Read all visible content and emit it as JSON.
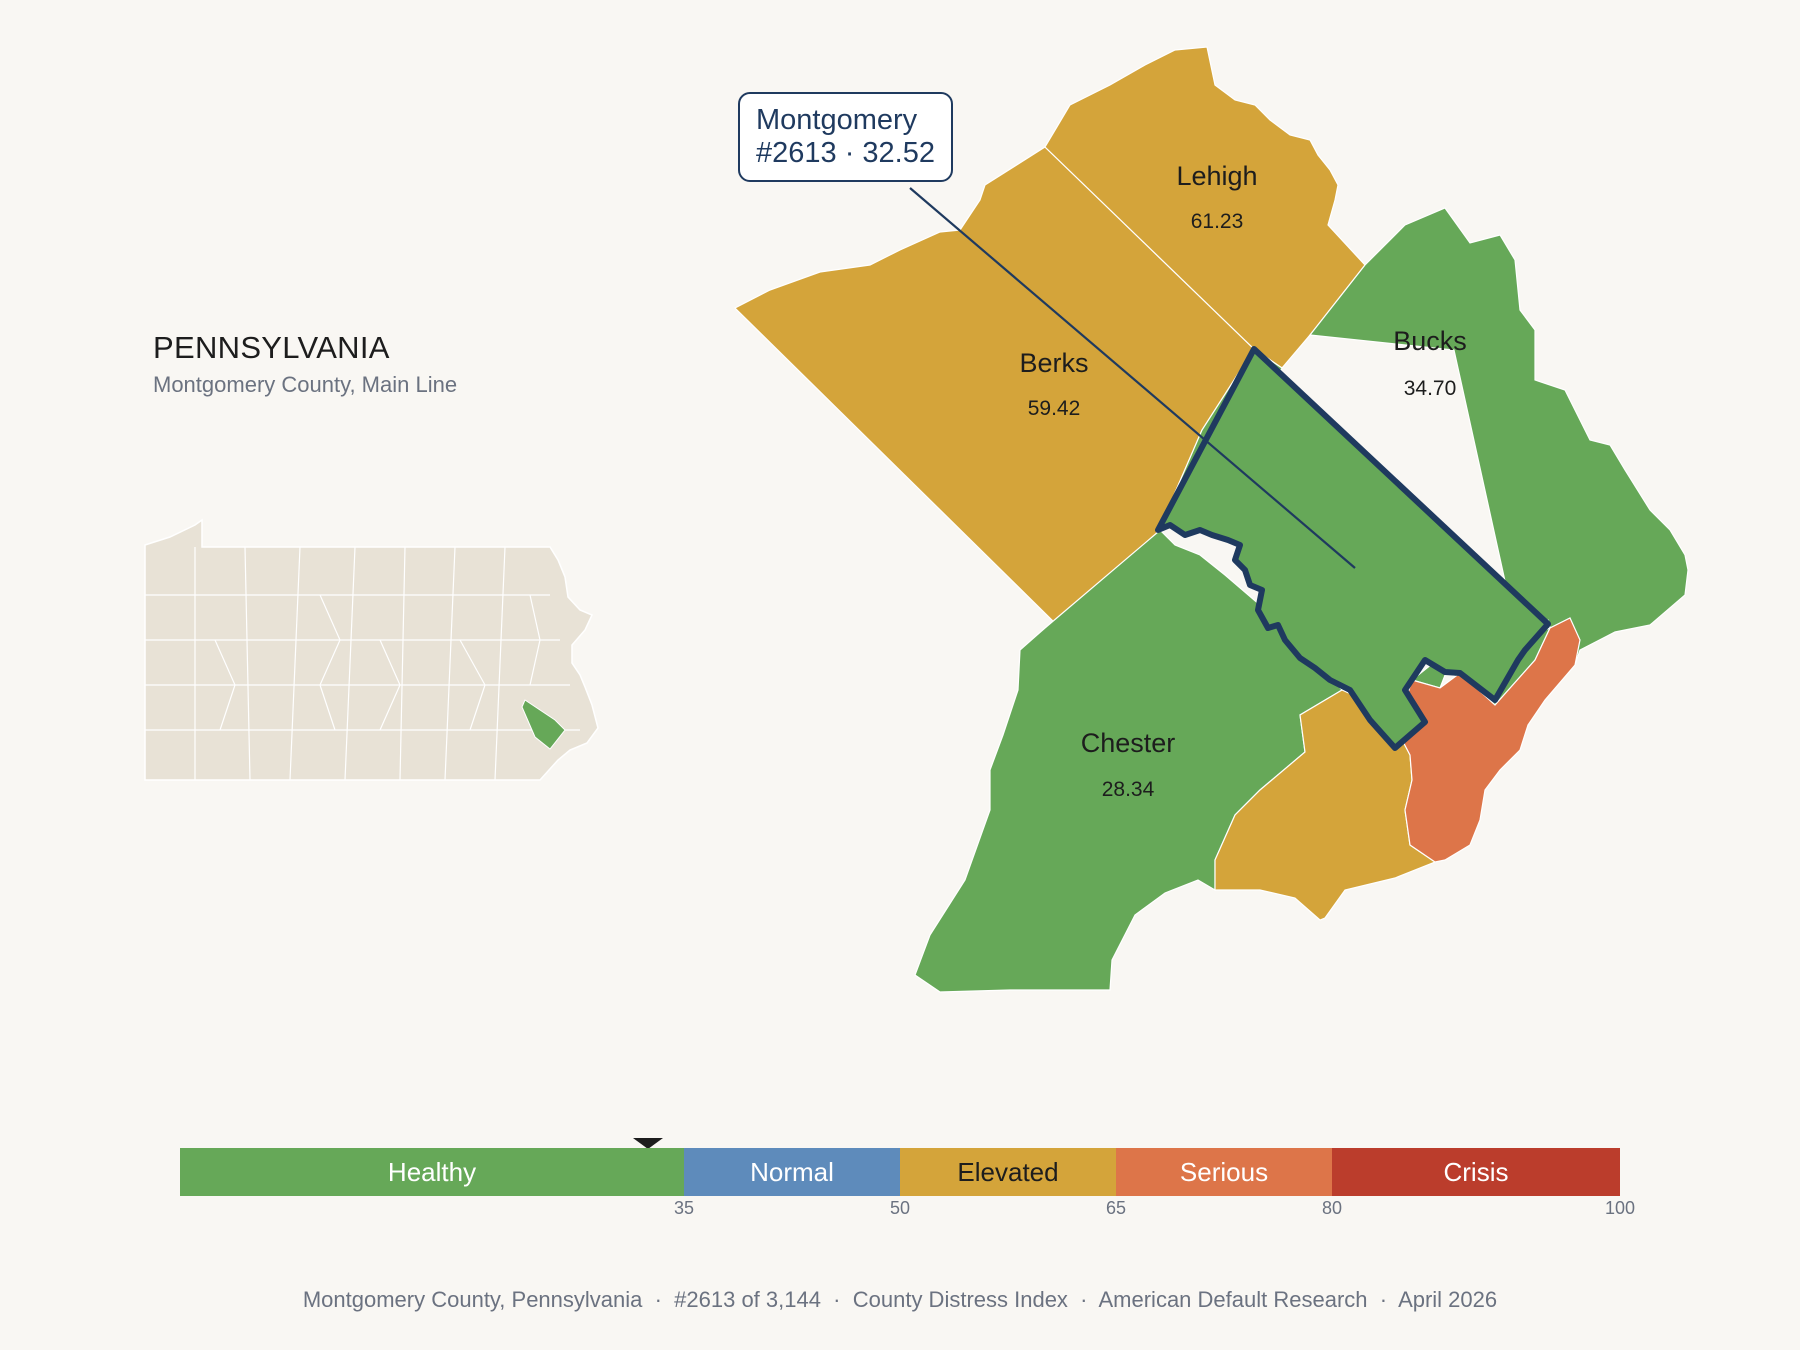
{
  "state": {
    "title": "PENNSYLVANIA",
    "subtitle": "Montgomery County, Main Line"
  },
  "callout": {
    "line1": "Montgomery",
    "line2": "#2613 · 32.52"
  },
  "counties": [
    {
      "name": "Lehigh",
      "value": "61.23",
      "category": "Elevated"
    },
    {
      "name": "Berks",
      "value": "59.42",
      "category": "Elevated"
    },
    {
      "name": "Bucks",
      "value": "34.70",
      "category": "Healthy"
    },
    {
      "name": "Chester",
      "value": "28.34",
      "category": "Healthy"
    },
    {
      "name": "Montgomery",
      "value": "32.52",
      "category": "Healthy",
      "highlighted": true
    },
    {
      "name": "",
      "value": "",
      "category": "Elevated"
    },
    {
      "name": "",
      "value": "",
      "category": "Serious"
    }
  ],
  "scale": {
    "bands": [
      {
        "label": "Healthy",
        "from": 0,
        "to": 35,
        "color": "#66a858",
        "text_color": "#ffffff"
      },
      {
        "label": "Normal",
        "from": 35,
        "to": 50,
        "color": "#5e8bbb",
        "text_color": "#ffffff"
      },
      {
        "label": "Elevated",
        "from": 50,
        "to": 65,
        "color": "#d4a43a",
        "text_color": "#1d1d1d"
      },
      {
        "label": "Serious",
        "from": 65,
        "to": 80,
        "color": "#dd7549",
        "text_color": "#ffffff"
      },
      {
        "label": "Crisis",
        "from": 80,
        "to": 100,
        "color": "#bb3d2c",
        "text_color": "#ffffff"
      }
    ],
    "ticks": [
      "35",
      "50",
      "65",
      "80",
      "100"
    ],
    "marker_value": 32.52
  },
  "footer": {
    "text": "Montgomery County, Pennsylvania  ·  #2613 of 3,144  ·  County Distress Index  ·  American Default Research  ·  April 2026"
  },
  "colors": {
    "healthy": "#66a858",
    "elevated": "#d4a43a",
    "serious": "#dd7549",
    "highlight_border": "#1f3a5f",
    "inset_fill": "#e8e2d6"
  }
}
